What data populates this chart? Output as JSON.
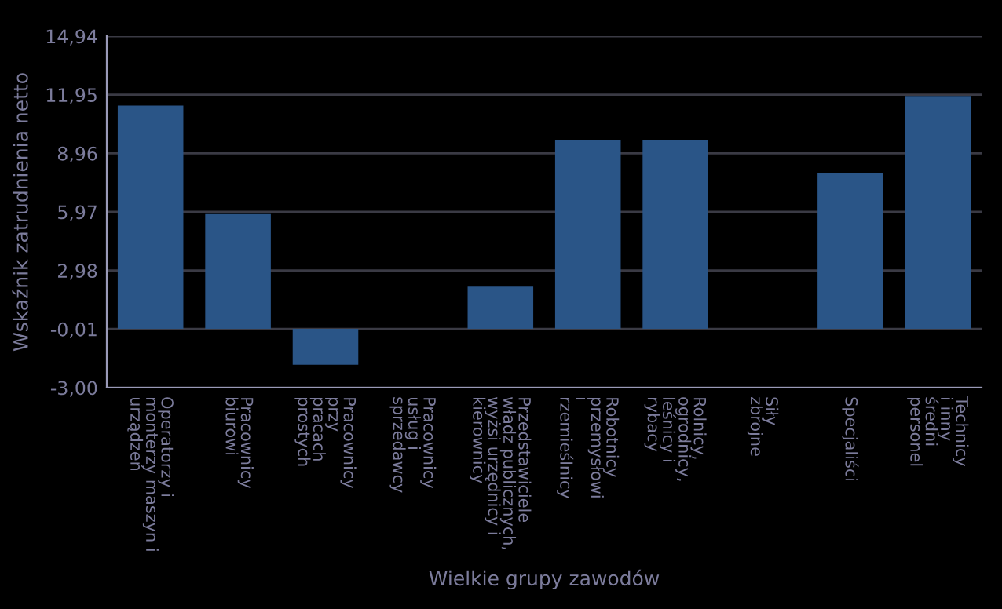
{
  "chart_data": {
    "type": "bar",
    "xlabel": "Wielkie grupy zawodów",
    "ylabel": "Wskaźnik zatrudnienia netto",
    "categories": [
      "Operatorzy i\nmonterzy maszyn i\nurządzeń",
      "Pracownicy\nbiurowi",
      "Pracownicy\nprzy\npracach\nprostych",
      "Pracownicy\nusług i\nsprzedawcy",
      "Przedstawiciele\nwładz publicznych,\nwyżsi urzędnicy i\nkierownicy",
      "Robotnicy\nprzemysłowi\ni\nrzemieślnicy",
      "Rolnicy,\nogrodnicy,\nleśnicy i\nrybacy",
      "Siły\nzbrojne",
      "Specjaliści",
      "Technicy\ni inny\nśredni\npersonel"
    ],
    "values": [
      11.4,
      5.86,
      -1.83,
      null,
      2.16,
      9.64,
      9.64,
      null,
      7.95,
      11.89
    ],
    "color": "#2a5587",
    "ylim": [
      -3.0,
      14.94
    ],
    "yticks": [
      {
        "value": -3.0,
        "label": "-3,00"
      },
      {
        "value": -0.01,
        "label": "-0,01"
      },
      {
        "value": 2.98,
        "label": "2,98"
      },
      {
        "value": 5.97,
        "label": "5,97"
      },
      {
        "value": 8.96,
        "label": "8,96"
      },
      {
        "value": 11.95,
        "label": "11,95"
      },
      {
        "value": 14.94,
        "label": "14,94"
      }
    ],
    "grid": "y"
  }
}
